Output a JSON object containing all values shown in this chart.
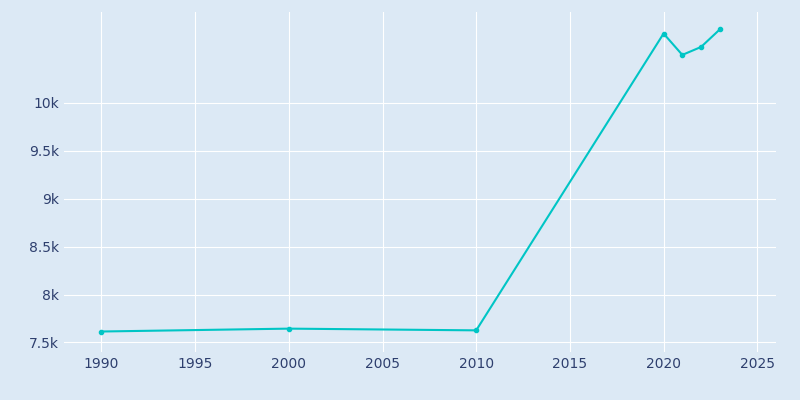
{
  "years": [
    1990,
    2000,
    2010,
    2020,
    2021,
    2022,
    2023
  ],
  "population": [
    7614,
    7644,
    7626,
    10725,
    10502,
    10585,
    10768
  ],
  "line_color": "#00c5c5",
  "bg_color": "#dce9f5",
  "plot_bg_color": "#dce9f5",
  "grid_color": "#ffffff",
  "tick_label_color": "#2e3f6e",
  "xlim": [
    1988,
    2026
  ],
  "ylim": [
    7400,
    10950
  ],
  "yticks": [
    7500,
    8000,
    8500,
    9000,
    9500,
    10000
  ],
  "xticks": [
    1990,
    1995,
    2000,
    2005,
    2010,
    2015,
    2020,
    2025
  ]
}
